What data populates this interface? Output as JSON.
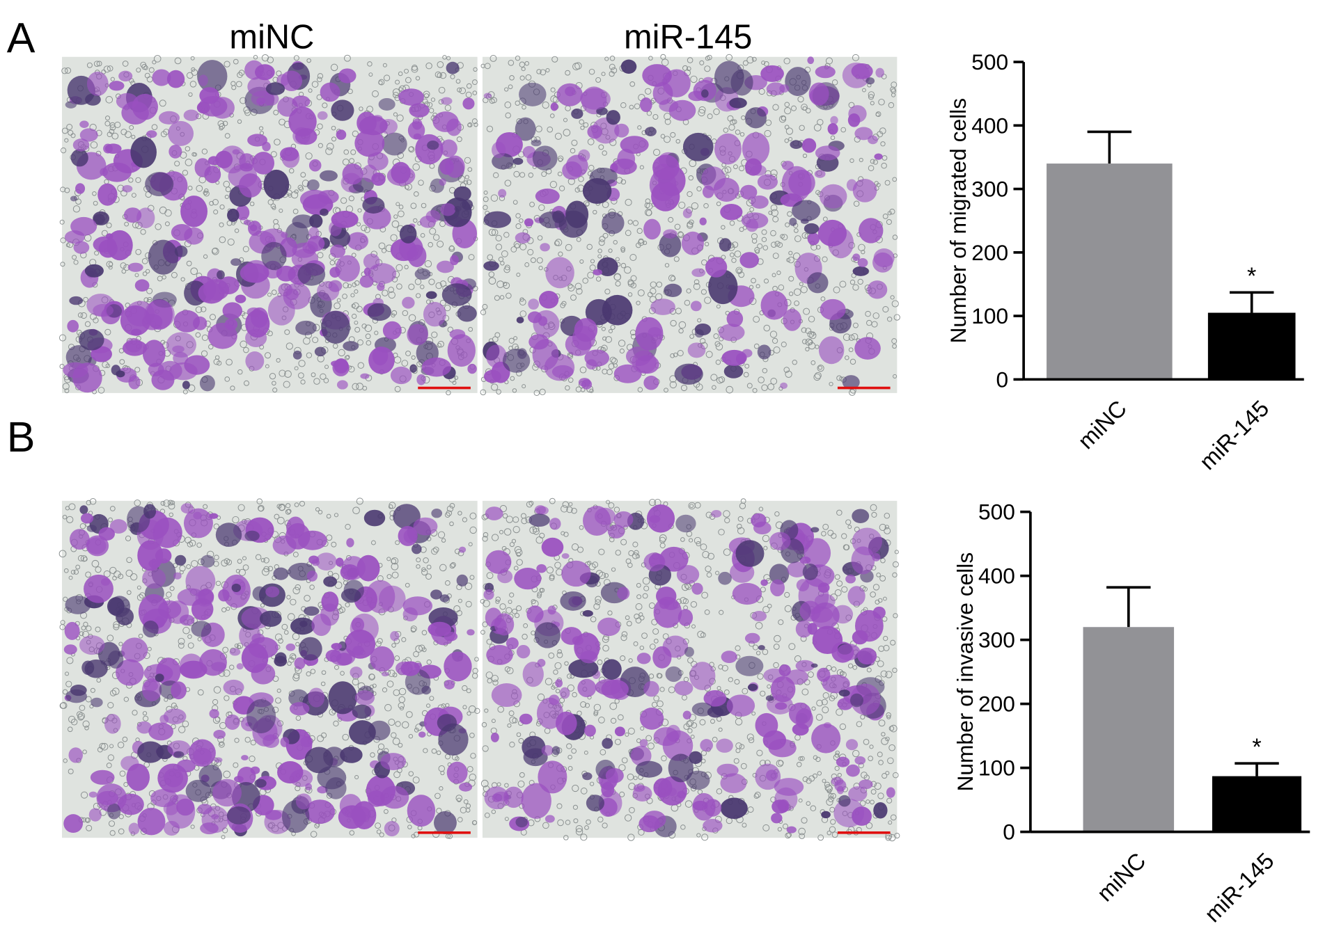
{
  "panel_labels": [
    "A",
    "B"
  ],
  "image_columns": [
    "miNC",
    "miR-145"
  ],
  "chart_data": [
    {
      "type": "bar",
      "ylabel": "Number of migrated cells",
      "categories": [
        "miNC",
        "miR-145"
      ],
      "values": [
        340,
        105
      ],
      "errors": [
        50,
        32
      ],
      "colors": [
        "#929296",
        "#000000"
      ],
      "significance": [
        null,
        "*"
      ],
      "ylim": [
        0,
        500
      ],
      "yticks": [
        0,
        100,
        200,
        300,
        400,
        500
      ]
    },
    {
      "type": "bar",
      "ylabel": "Number of invasive cells",
      "categories": [
        "miNC",
        "miR-145"
      ],
      "values": [
        320,
        87
      ],
      "errors": [
        62,
        20
      ],
      "colors": [
        "#929296",
        "#000000"
      ],
      "significance": [
        null,
        "*"
      ],
      "ylim": [
        0,
        500
      ],
      "yticks": [
        0,
        100,
        200,
        300,
        400,
        500
      ]
    }
  ]
}
